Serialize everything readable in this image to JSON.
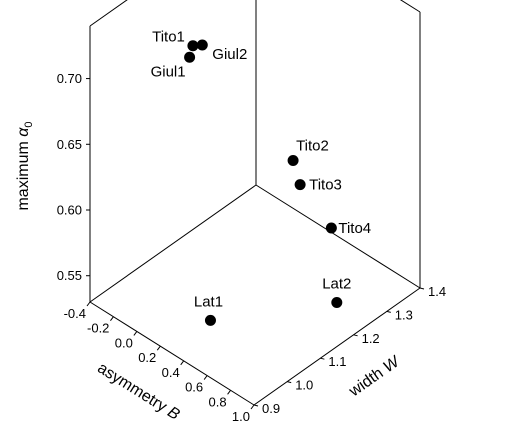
{
  "chart_data": {
    "type": "scatter",
    "projection": "3d",
    "grid": false,
    "axes": {
      "x": {
        "label": "asymmetry",
        "symbol": "B",
        "range": [
          -0.4,
          1.0
        ],
        "ticks": [
          -0.4,
          -0.2,
          0.0,
          0.2,
          0.4,
          0.6,
          0.8,
          1.0
        ],
        "tick_labels": [
          "-0.4",
          "-0.2",
          "0.0",
          "0.2",
          "0.4",
          "0.6",
          "0.8",
          "1.0"
        ]
      },
      "y": {
        "label": "width",
        "symbol": "W",
        "range": [
          0.9,
          1.4
        ],
        "ticks": [
          0.9,
          1.0,
          1.1,
          1.2,
          1.3,
          1.4
        ],
        "tick_labels": [
          "0.9",
          "1.0",
          "1.1",
          "1.2",
          "1.3",
          "1.4"
        ]
      },
      "z": {
        "label": "maximum",
        "symbol": "α",
        "symbol_subscript": "0",
        "range": [
          0.53,
          0.74
        ],
        "ticks": [
          0.55,
          0.6,
          0.65,
          0.7
        ],
        "tick_labels": [
          "0.55",
          "0.60",
          "0.65",
          "0.70"
        ]
      }
    },
    "points": [
      {
        "label": "Tito1",
        "B": -0.23,
        "W": 1.15,
        "alpha": 0.69
      },
      {
        "label": "Giul1",
        "B": -0.23,
        "W": 1.14,
        "alpha": 0.683
      },
      {
        "label": "Giul2",
        "B": -0.15,
        "W": 1.15,
        "alpha": 0.695
      },
      {
        "label": "Tito2",
        "B": 0.2,
        "W": 1.3,
        "alpha": 0.6
      },
      {
        "label": "Tito3",
        "B": 0.26,
        "W": 1.3,
        "alpha": 0.585
      },
      {
        "label": "Tito4",
        "B": 0.3,
        "W": 1.38,
        "alpha": 0.54
      },
      {
        "label": "Lat1",
        "B": 0.43,
        "W": 0.97,
        "alpha": 0.55
      },
      {
        "label": "Lat2",
        "B": 0.97,
        "W": 1.16,
        "alpha": 0.56
      }
    ]
  }
}
